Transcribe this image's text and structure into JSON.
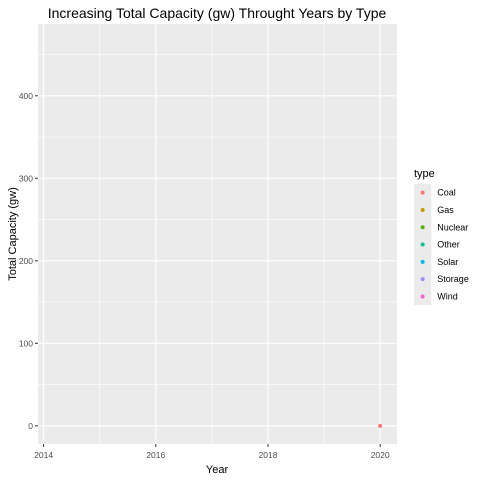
{
  "chart_data": {
    "type": "scatter",
    "title": "Increasing Total Capacity (gw) Throught Years by Type",
    "xlabel": "Year",
    "ylabel": "Total Capacity (gw)",
    "xlim": [
      2013.9,
      2020.3
    ],
    "ylim": [
      -22,
      487
    ],
    "x_ticks": [
      2014,
      2016,
      2018,
      2020
    ],
    "y_ticks": [
      0,
      100,
      200,
      300,
      400
    ],
    "grid": true,
    "legend": {
      "title": "type",
      "placement": "right",
      "entries": [
        {
          "label": "Coal",
          "color": "#F8766D"
        },
        {
          "label": "Gas",
          "color": "#C49A00"
        },
        {
          "label": "Nuclear",
          "color": "#53B400"
        },
        {
          "label": "Other",
          "color": "#00C094"
        },
        {
          "label": "Solar",
          "color": "#00B6EB"
        },
        {
          "label": "Storage",
          "color": "#A58AFF"
        },
        {
          "label": "Wind",
          "color": "#FB61D7"
        }
      ]
    },
    "series": [
      {
        "name": "Coal",
        "color": "#F8766D",
        "points": [
          {
            "x": 2020,
            "y": 0
          }
        ]
      }
    ],
    "colors": {
      "panel_background": "#EBEBEB",
      "grid_major": "#FFFFFF",
      "tick_color": "#333333"
    }
  }
}
